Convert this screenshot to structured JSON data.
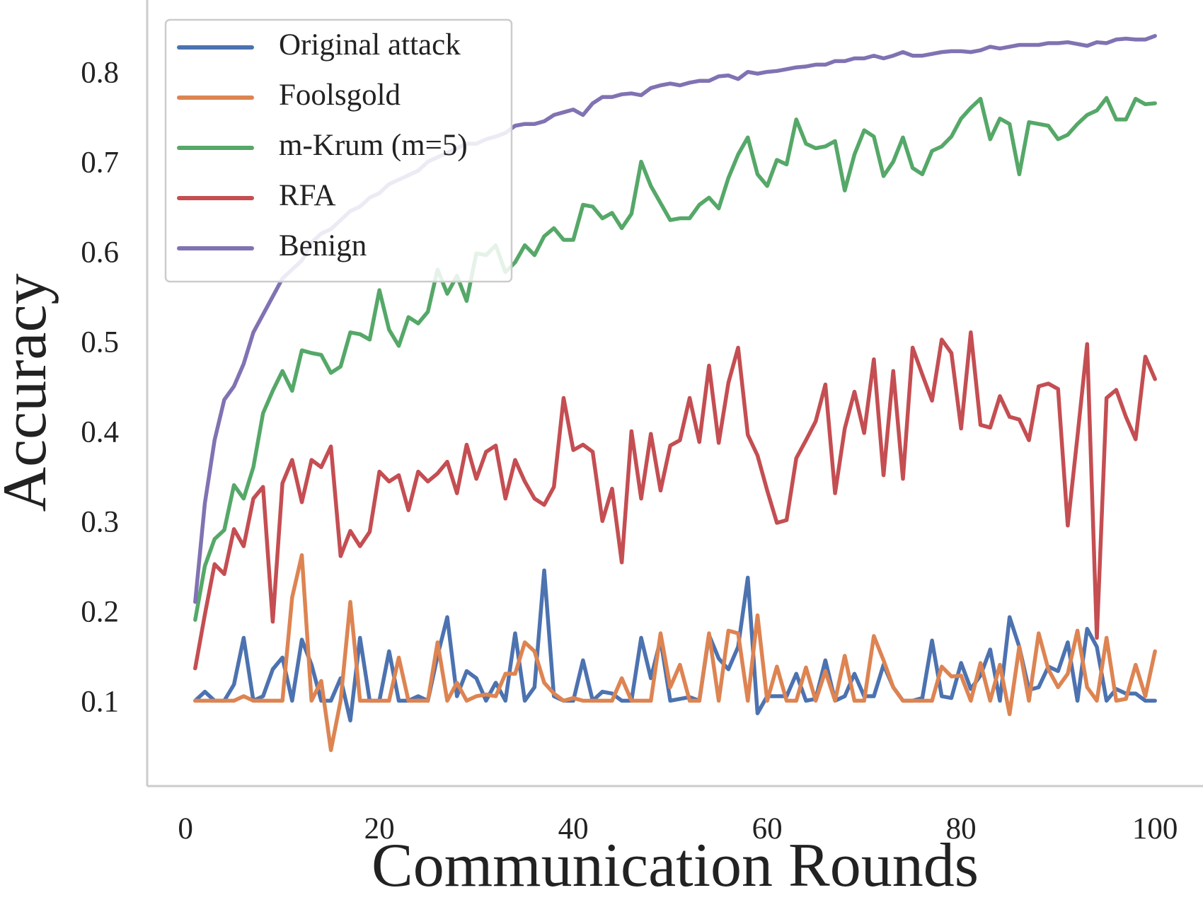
{
  "chart_data": {
    "type": "line",
    "xlabel": "Communication Rounds",
    "ylabel": "Accuracy",
    "x": [
      1,
      2,
      3,
      4,
      5,
      6,
      7,
      8,
      9,
      10,
      11,
      12,
      13,
      14,
      15,
      16,
      17,
      18,
      19,
      20,
      21,
      22,
      23,
      24,
      25,
      26,
      27,
      28,
      29,
      30,
      31,
      32,
      33,
      34,
      35,
      36,
      37,
      38,
      39,
      40,
      41,
      42,
      43,
      44,
      45,
      46,
      47,
      48,
      49,
      50,
      51,
      52,
      53,
      54,
      55,
      56,
      57,
      58,
      59,
      60,
      61,
      62,
      63,
      64,
      65,
      66,
      67,
      68,
      69,
      70,
      71,
      72,
      73,
      74,
      75,
      76,
      77,
      78,
      79,
      80,
      81,
      82,
      83,
      84,
      85,
      86,
      87,
      88,
      89,
      90,
      91,
      92,
      93,
      94,
      95,
      96,
      97,
      98,
      99,
      100
    ],
    "series": [
      {
        "name": "Original attack",
        "color": "#4c72b0",
        "values": [
          0.1,
          0.11,
          0.1,
          0.1,
          0.118,
          0.17,
          0.1,
          0.105,
          0.135,
          0.148,
          0.1,
          0.168,
          0.14,
          0.1,
          0.1,
          0.125,
          0.078,
          0.17,
          0.1,
          0.1,
          0.155,
          0.1,
          0.1,
          0.105,
          0.1,
          0.15,
          0.193,
          0.105,
          0.133,
          0.125,
          0.1,
          0.12,
          0.1,
          0.175,
          0.1,
          0.115,
          0.245,
          0.105,
          0.1,
          0.1,
          0.145,
          0.1,
          0.11,
          0.108,
          0.1,
          0.1,
          0.17,
          0.125,
          0.168,
          0.1,
          0.102,
          0.104,
          0.1,
          0.173,
          0.147,
          0.135,
          0.16,
          0.237,
          0.086,
          0.105,
          0.105,
          0.105,
          0.13,
          0.1,
          0.102,
          0.145,
          0.1,
          0.105,
          0.13,
          0.105,
          0.105,
          0.14,
          0.115,
          0.1,
          0.1,
          0.103,
          0.167,
          0.105,
          0.103,
          0.142,
          0.113,
          0.128,
          0.157,
          0.1,
          0.193,
          0.16,
          0.112,
          0.115,
          0.138,
          0.133,
          0.165,
          0.1,
          0.18,
          0.16,
          0.1,
          0.113,
          0.108,
          0.108,
          0.1,
          0.1
        ]
      },
      {
        "name": "Foolsgold",
        "color": "#dd8452",
        "values": [
          0.1,
          0.1,
          0.1,
          0.1,
          0.1,
          0.105,
          0.1,
          0.1,
          0.1,
          0.1,
          0.215,
          0.262,
          0.1,
          0.122,
          0.045,
          0.1,
          0.21,
          0.1,
          0.1,
          0.1,
          0.1,
          0.148,
          0.1,
          0.1,
          0.1,
          0.165,
          0.1,
          0.12,
          0.1,
          0.105,
          0.107,
          0.105,
          0.13,
          0.13,
          0.165,
          0.155,
          0.12,
          0.108,
          0.1,
          0.103,
          0.1,
          0.1,
          0.1,
          0.1,
          0.125,
          0.1,
          0.1,
          0.1,
          0.175,
          0.115,
          0.14,
          0.1,
          0.1,
          0.175,
          0.1,
          0.178,
          0.175,
          0.1,
          0.195,
          0.1,
          0.138,
          0.1,
          0.1,
          0.137,
          0.1,
          0.133,
          0.1,
          0.15,
          0.1,
          0.1,
          0.172,
          0.145,
          0.115,
          0.1,
          0.1,
          0.1,
          0.1,
          0.138,
          0.127,
          0.128,
          0.1,
          0.142,
          0.1,
          0.14,
          0.085,
          0.16,
          0.1,
          0.175,
          0.135,
          0.115,
          0.13,
          0.178,
          0.115,
          0.1,
          0.17,
          0.1,
          0.102,
          0.14,
          0.105,
          0.155
        ]
      },
      {
        "name": "m-Krum (m=5)",
        "color": "#55a868",
        "values": [
          0.19,
          0.25,
          0.28,
          0.29,
          0.34,
          0.325,
          0.36,
          0.42,
          0.445,
          0.467,
          0.445,
          0.49,
          0.487,
          0.485,
          0.465,
          0.472,
          0.51,
          0.508,
          0.502,
          0.557,
          0.513,
          0.495,
          0.527,
          0.52,
          0.533,
          0.58,
          0.553,
          0.573,
          0.545,
          0.598,
          0.596,
          0.607,
          0.577,
          0.588,
          0.607,
          0.596,
          0.617,
          0.626,
          0.613,
          0.613,
          0.652,
          0.65,
          0.637,
          0.643,
          0.626,
          0.642,
          0.7,
          0.673,
          0.654,
          0.635,
          0.637,
          0.637,
          0.652,
          0.66,
          0.648,
          0.682,
          0.708,
          0.727,
          0.686,
          0.673,
          0.702,
          0.697,
          0.747,
          0.72,
          0.715,
          0.717,
          0.723,
          0.668,
          0.708,
          0.735,
          0.728,
          0.684,
          0.7,
          0.727,
          0.693,
          0.686,
          0.712,
          0.717,
          0.728,
          0.748,
          0.76,
          0.77,
          0.725,
          0.748,
          0.742,
          0.686,
          0.744,
          0.742,
          0.74,
          0.725,
          0.73,
          0.742,
          0.752,
          0.757,
          0.771,
          0.747,
          0.747,
          0.77,
          0.764,
          0.765
        ]
      },
      {
        "name": "RFA",
        "color": "#c44e52",
        "values": [
          0.136,
          0.196,
          0.252,
          0.241,
          0.291,
          0.272,
          0.325,
          0.338,
          0.188,
          0.342,
          0.368,
          0.321,
          0.368,
          0.36,
          0.383,
          0.261,
          0.289,
          0.272,
          0.288,
          0.355,
          0.344,
          0.351,
          0.312,
          0.355,
          0.344,
          0.353,
          0.366,
          0.331,
          0.385,
          0.347,
          0.377,
          0.384,
          0.325,
          0.368,
          0.344,
          0.325,
          0.318,
          0.338,
          0.437,
          0.379,
          0.385,
          0.377,
          0.3,
          0.336,
          0.254,
          0.4,
          0.325,
          0.397,
          0.334,
          0.384,
          0.39,
          0.437,
          0.388,
          0.473,
          0.387,
          0.454,
          0.493,
          0.396,
          0.373,
          0.334,
          0.298,
          0.301,
          0.37,
          0.39,
          0.411,
          0.452,
          0.331,
          0.403,
          0.444,
          0.398,
          0.48,
          0.351,
          0.467,
          0.347,
          0.493,
          0.463,
          0.434,
          0.502,
          0.487,
          0.403,
          0.51,
          0.407,
          0.404,
          0.439,
          0.416,
          0.413,
          0.39,
          0.45,
          0.453,
          0.447,
          0.295,
          0.394,
          0.497,
          0.17,
          0.437,
          0.446,
          0.416,
          0.391,
          0.483,
          0.458
        ]
      },
      {
        "name": "Benign",
        "color": "#8172b3",
        "values": [
          0.21,
          0.32,
          0.39,
          0.435,
          0.45,
          0.475,
          0.51,
          0.53,
          0.55,
          0.57,
          0.58,
          0.59,
          0.61,
          0.62,
          0.625,
          0.635,
          0.645,
          0.65,
          0.66,
          0.665,
          0.675,
          0.68,
          0.685,
          0.69,
          0.7,
          0.705,
          0.71,
          0.715,
          0.72,
          0.72,
          0.725,
          0.728,
          0.732,
          0.74,
          0.742,
          0.742,
          0.745,
          0.752,
          0.755,
          0.758,
          0.752,
          0.765,
          0.772,
          0.772,
          0.775,
          0.776,
          0.774,
          0.782,
          0.785,
          0.787,
          0.785,
          0.788,
          0.79,
          0.79,
          0.795,
          0.796,
          0.792,
          0.8,
          0.798,
          0.8,
          0.801,
          0.803,
          0.805,
          0.806,
          0.808,
          0.808,
          0.812,
          0.812,
          0.815,
          0.815,
          0.818,
          0.815,
          0.818,
          0.822,
          0.818,
          0.818,
          0.82,
          0.822,
          0.823,
          0.823,
          0.822,
          0.824,
          0.828,
          0.826,
          0.828,
          0.83,
          0.83,
          0.83,
          0.832,
          0.832,
          0.833,
          0.831,
          0.829,
          0.833,
          0.832,
          0.836,
          0.837,
          0.836,
          0.836,
          0.84
        ]
      }
    ],
    "xlim": [
      -3.95,
      104.95
    ],
    "ylim": [
      0.005,
      0.88
    ],
    "xticks": [
      0,
      20,
      40,
      60,
      80,
      100
    ],
    "yticks": [
      0.1,
      0.2,
      0.3,
      0.4,
      0.5,
      0.6,
      0.7,
      0.8
    ],
    "grid": false,
    "legend": "upper left"
  }
}
